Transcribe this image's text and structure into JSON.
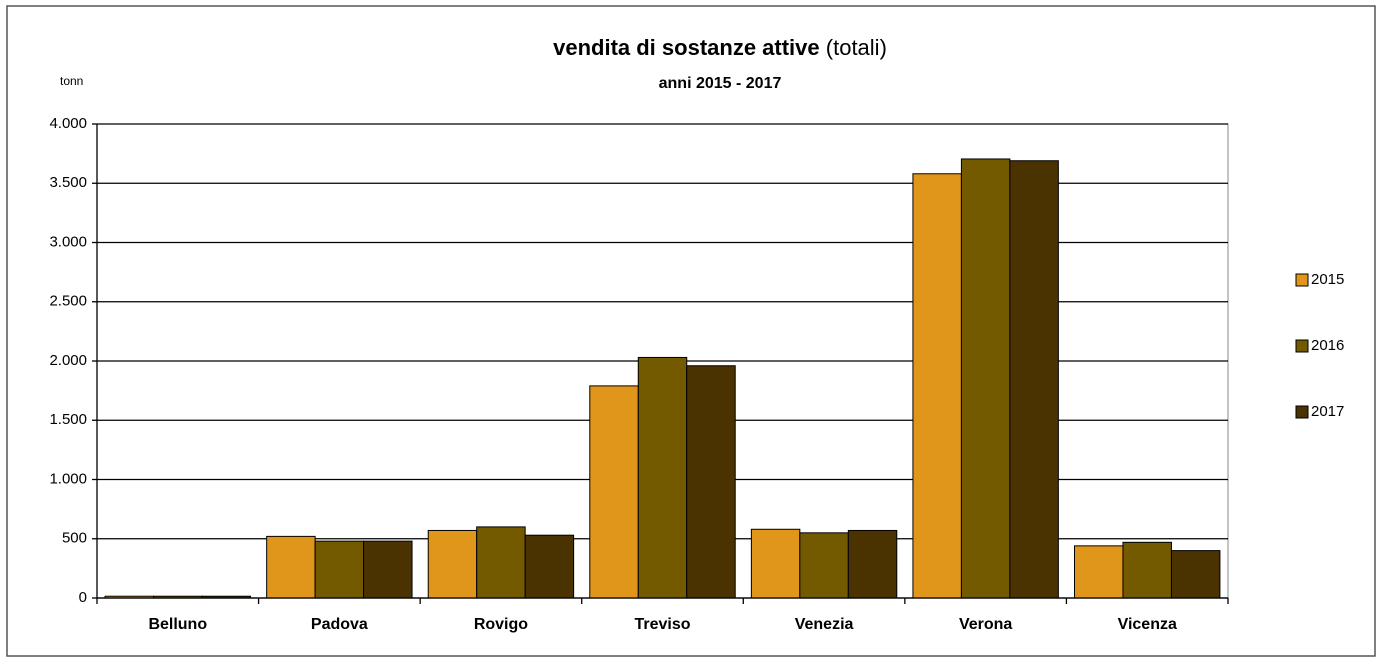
{
  "chart_data": {
    "type": "bar",
    "title": "vendita di sostanze attive",
    "title_note": "(totali)",
    "subtitle": "anni 2015 - 2017",
    "y_label": "tonn",
    "categories": [
      "Belluno",
      "Padova",
      "Rovigo",
      "Treviso",
      "Venezia",
      "Verona",
      "Vicenza"
    ],
    "series": [
      {
        "name": "2015",
        "color": "#e0961a",
        "values": [
          15,
          520,
          570,
          1790,
          580,
          3580,
          440
        ]
      },
      {
        "name": "2016",
        "color": "#735a00",
        "values": [
          15,
          480,
          600,
          2030,
          550,
          3705,
          470
        ]
      },
      {
        "name": "2017",
        "color": "#4a3300",
        "values": [
          15,
          480,
          530,
          1960,
          570,
          3690,
          400
        ]
      }
    ],
    "ylim": [
      0,
      4000
    ],
    "yticks": [
      0,
      500,
      {
        "value": 1000,
        "label": "1.000"
      },
      {
        "value": 1500,
        "label": "1.500"
      },
      {
        "value": 2000,
        "label": "2.000"
      },
      {
        "value": 2500,
        "label": "2.500"
      },
      {
        "value": 3000,
        "label": "3.000"
      },
      {
        "value": 3500,
        "label": "3.500"
      },
      {
        "value": 4000,
        "label": "4.000"
      }
    ],
    "grid": true,
    "legend": "right"
  }
}
